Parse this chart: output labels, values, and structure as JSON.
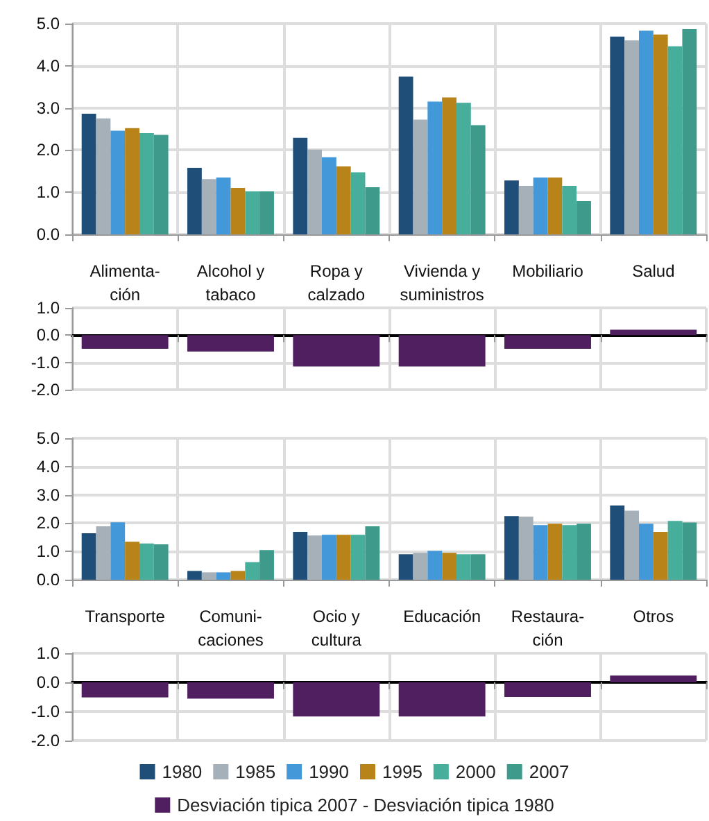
{
  "chart_data": [
    {
      "type": "bar",
      "categories": [
        "Alimenta-\nción",
        "Alcohol y\ntabaco",
        "Ropa y\ncalzado",
        "Vivienda y\nsuministros",
        "Mobiliario",
        "Salud"
      ],
      "series": [
        {
          "color": "#1f4e79",
          "values": [
            2.86,
            1.58,
            2.29,
            3.74,
            1.28,
            4.69
          ]
        },
        {
          "color": "#a5b0b8",
          "values": [
            2.75,
            1.31,
            2.01,
            2.72,
            1.15,
            4.6
          ]
        },
        {
          "color": "#4298d8",
          "values": [
            2.46,
            1.35,
            1.83,
            3.15,
            1.35,
            4.83
          ]
        },
        {
          "color": "#b8841a",
          "values": [
            2.52,
            1.1,
            1.61,
            3.25,
            1.35,
            4.74
          ]
        },
        {
          "color": "#46ae9b",
          "values": [
            2.4,
            1.02,
            1.47,
            3.12,
            1.15,
            4.46
          ]
        },
        {
          "color": "#3e9a8a",
          "values": [
            2.36,
            1.02,
            1.12,
            2.59,
            0.79,
            4.87
          ]
        }
      ],
      "ylim": [
        0,
        5
      ],
      "yticks": [
        {
          "value": 0,
          "label": "0.0"
        },
        {
          "value": 1,
          "label": "1.0"
        },
        {
          "value": 2,
          "label": "2.0"
        },
        {
          "value": 3,
          "label": "3.0"
        },
        {
          "value": 4,
          "label": "4.0"
        },
        {
          "value": 5,
          "label": "5.0"
        }
      ],
      "grid": true,
      "legend": false
    },
    {
      "type": "bar",
      "categories": [
        null,
        null,
        null,
        null,
        null,
        null
      ],
      "series": [
        {
          "color": "#4f1f5f",
          "values": [
            -0.5,
            -0.6,
            -1.15,
            -1.15,
            -0.5,
            0.2
          ]
        }
      ],
      "ylim": [
        -2,
        1
      ],
      "yticks": [
        {
          "value": -2,
          "label": "-2.0"
        },
        {
          "value": -1,
          "label": "-1.0"
        },
        {
          "value": 0,
          "label": "0.0"
        },
        {
          "value": 1,
          "label": "1.0"
        }
      ],
      "grid": true,
      "legend": false,
      "tick_labels": "y"
    },
    {
      "type": "bar",
      "categories": [
        "Transporte",
        "Comuni-\ncaciones",
        "Ocio y\ncultura",
        "Educación",
        "Restaura-\nción",
        "Otros"
      ],
      "series": [
        {
          "name": "1980",
          "color": "#1f4e79",
          "values": [
            1.64,
            0.31,
            1.69,
            0.9,
            2.25,
            2.62
          ]
        },
        {
          "name": "1985",
          "color": "#a5b0b8",
          "values": [
            1.89,
            0.26,
            1.56,
            0.95,
            2.23,
            2.44
          ]
        },
        {
          "name": "1990",
          "color": "#4298d8",
          "values": [
            2.03,
            0.26,
            1.59,
            1.02,
            1.93,
            1.98
          ]
        },
        {
          "name": "1995",
          "color": "#b8841a",
          "values": [
            1.34,
            0.31,
            1.59,
            0.95,
            1.98,
            1.69
          ]
        },
        {
          "name": "2000",
          "color": "#46ae9b",
          "values": [
            1.28,
            0.62,
            1.59,
            0.9,
            1.93,
            2.08
          ]
        },
        {
          "name": "2007",
          "color": "#3e9a8a",
          "values": [
            1.25,
            1.05,
            1.89,
            0.9,
            1.98,
            2.02
          ]
        }
      ],
      "ylim": [
        0,
        5
      ],
      "yticks": [
        {
          "value": 0,
          "label": "0.0"
        },
        {
          "value": 1,
          "label": "1.0"
        },
        {
          "value": 2,
          "label": "2.0"
        },
        {
          "value": 3,
          "label": "3.0"
        },
        {
          "value": 4,
          "label": "4.0"
        },
        {
          "value": 5,
          "label": "5.0"
        }
      ],
      "grid": true,
      "legend": "bottom"
    },
    {
      "type": "bar",
      "categories": [
        null,
        null,
        null,
        null,
        null,
        null
      ],
      "series": [
        {
          "name": "Desviación tipica 2007 - Desviación tipica 1980",
          "color": "#4f1f5f",
          "values": [
            -0.52,
            -0.56,
            -1.17,
            -1.17,
            -0.5,
            0.23
          ]
        }
      ],
      "ylim": [
        -2,
        1
      ],
      "yticks": [
        {
          "value": -2,
          "label": "-2.0"
        },
        {
          "value": -1,
          "label": "-1.0"
        },
        {
          "value": 0,
          "label": "0.0"
        },
        {
          "value": 1,
          "label": "1.0"
        }
      ],
      "grid": true,
      "legend": "bottom",
      "tick_labels": "y"
    }
  ]
}
